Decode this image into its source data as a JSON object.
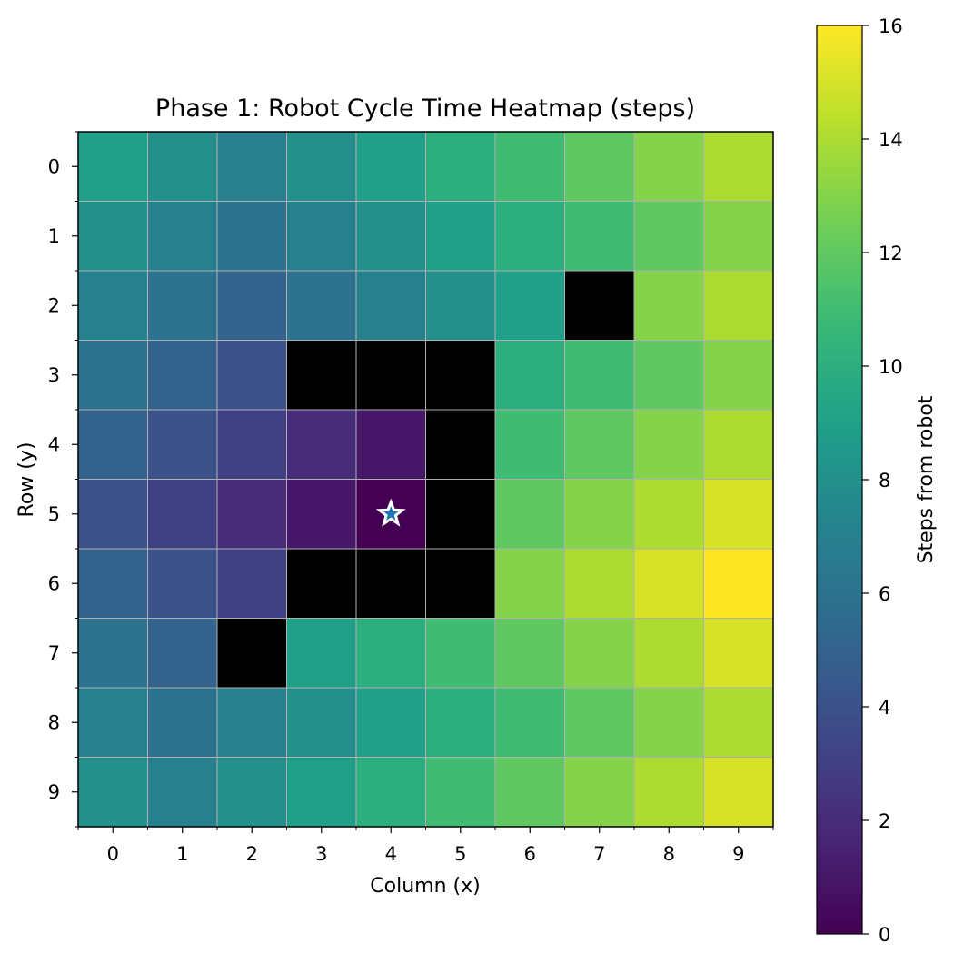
{
  "chart_data": {
    "type": "heatmap",
    "title": "Phase 1: Robot Cycle Time Heatmap (steps)",
    "xlabel": "Column (x)",
    "ylabel": "Row (y)",
    "x_ticks": [
      "0",
      "1",
      "2",
      "3",
      "4",
      "5",
      "6",
      "7",
      "8",
      "9"
    ],
    "y_ticks": [
      "0",
      "1",
      "2",
      "3",
      "4",
      "5",
      "6",
      "7",
      "8",
      "9"
    ],
    "colormap": "viridis",
    "vmin": 0,
    "vmax": 16,
    "obstacle_color": "#000000",
    "grid": true,
    "values": [
      [
        9,
        8,
        7,
        8,
        9,
        10,
        11,
        12,
        13,
        14
      ],
      [
        8,
        7,
        6,
        7,
        8,
        9,
        10,
        11,
        12,
        13
      ],
      [
        7,
        6,
        5,
        6,
        7,
        8,
        9,
        null,
        13,
        14
      ],
      [
        6,
        5,
        4,
        null,
        null,
        null,
        10,
        11,
        12,
        13
      ],
      [
        5,
        4,
        3,
        2,
        1,
        null,
        11,
        12,
        13,
        14
      ],
      [
        4,
        3,
        2,
        1,
        0,
        null,
        12,
        13,
        14,
        15
      ],
      [
        5,
        4,
        3,
        null,
        null,
        null,
        13,
        14,
        15,
        16
      ],
      [
        6,
        5,
        null,
        9,
        10,
        11,
        12,
        13,
        14,
        15
      ],
      [
        7,
        6,
        7,
        8,
        9,
        10,
        11,
        12,
        13,
        14
      ],
      [
        8,
        7,
        8,
        9,
        10,
        11,
        12,
        13,
        14,
        15
      ]
    ],
    "robot": {
      "x": 4,
      "y": 5,
      "marker": "star",
      "color": "#1f77b4"
    },
    "colorbar": {
      "label": "Steps from robot",
      "ticks": [
        "0",
        "2",
        "4",
        "6",
        "8",
        "10",
        "12",
        "14",
        "16"
      ]
    }
  }
}
